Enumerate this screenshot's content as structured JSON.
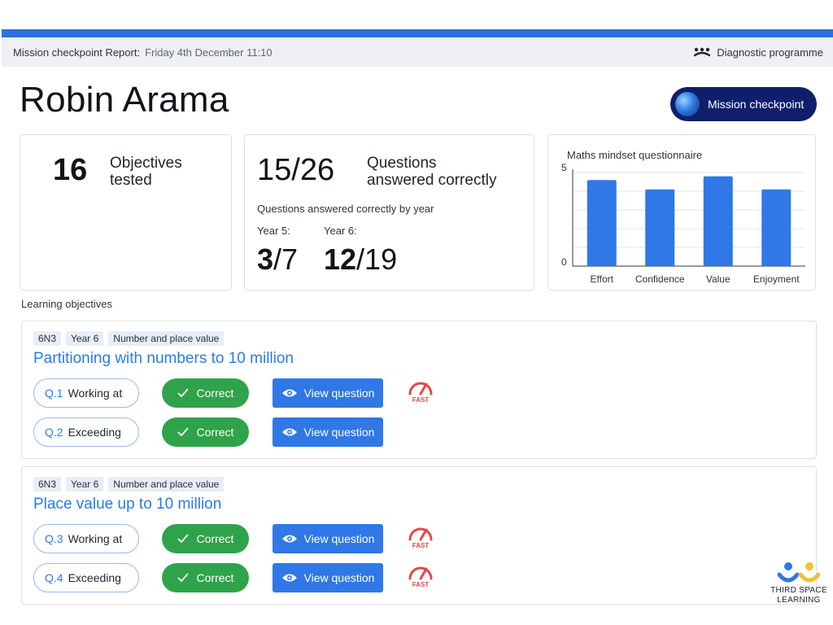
{
  "report_bar": {
    "label": "Mission checkpoint Report:",
    "date": "Friday 4th December 11:10",
    "programme": "Diagnostic programme"
  },
  "student": {
    "name": "Robin Arama"
  },
  "mission_button": {
    "label": "Mission checkpoint"
  },
  "summary": {
    "objectives_count": "16",
    "objectives_label_line1": "Objectives",
    "objectives_label_line2": "tested",
    "correct_score": "15/26",
    "correct_label_line1": "Questions",
    "correct_label_line2": "answered correctly",
    "by_year_heading": "Questions answered correctly by year",
    "years": [
      {
        "label": "Year 5:",
        "correct": "3",
        "total": "/7"
      },
      {
        "label": "Year 6:",
        "correct": "12",
        "total": "/19"
      }
    ]
  },
  "chart_data": {
    "type": "bar",
    "title": "Maths mindset questionnaire",
    "categories": [
      "Effort",
      "Confidence",
      "Value",
      "Enjoyment"
    ],
    "values": [
      4.6,
      4.1,
      4.8,
      4.1
    ],
    "ylim": [
      0,
      5
    ],
    "yticks": [
      "0",
      "5"
    ],
    "grid": true,
    "bar_color": "#2f78e6"
  },
  "learning_objectives_heading": "Learning objectives",
  "objectives": [
    {
      "tags": [
        "6N3",
        "Year 6",
        "Number and place value"
      ],
      "title": "Partitioning with numbers to 10 million",
      "questions": [
        {
          "number": "Q.1",
          "level": "Working at",
          "result": "Correct",
          "view_label": "View question",
          "fast": true,
          "fast_label": "FAST"
        },
        {
          "number": "Q.2",
          "level": "Exceeding",
          "result": "Correct",
          "view_label": "View question",
          "fast": false,
          "fast_label": ""
        }
      ]
    },
    {
      "tags": [
        "6N3",
        "Year 6",
        "Number and place value"
      ],
      "title": "Place value up to 10 million",
      "questions": [
        {
          "number": "Q.3",
          "level": "Working at",
          "result": "Correct",
          "view_label": "View question",
          "fast": true,
          "fast_label": "FAST"
        },
        {
          "number": "Q.4",
          "level": "Exceeding",
          "result": "Correct",
          "view_label": "View question",
          "fast": true,
          "fast_label": "FAST"
        }
      ]
    }
  ],
  "brand": {
    "line1": "THIRD SPACE",
    "line2": "LEARNING"
  },
  "colors": {
    "accent_blue": "#2f78e6",
    "correct_green": "#2fa34a",
    "mission_navy": "#0f1f6b",
    "fast_red": "#e54848"
  }
}
